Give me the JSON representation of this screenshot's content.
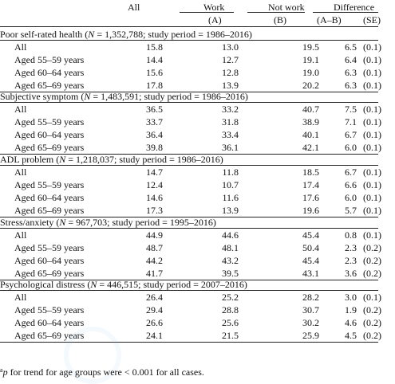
{
  "header": {
    "all": "All",
    "work": "Work",
    "not_work": "Not work",
    "difference": "Difference",
    "a": "(A)",
    "b": "(B)",
    "a_minus_b": "(A–B)",
    "se": "(SE)"
  },
  "sections": [
    {
      "title_prefix": "Poor self-rated health (",
      "n_label": "N",
      "title_suffix": " = 1,352,788; study period = 1986–2016)",
      "rows": [
        {
          "label": "All",
          "all": "15.8",
          "work": "13.0",
          "not_work": "19.5",
          "diff": "6.5",
          "se": "(0.1)"
        },
        {
          "label": "Aged 55–59 years",
          "all": "14.4",
          "work": "12.7",
          "not_work": "19.1",
          "diff": "6.4",
          "se": "(0.1)"
        },
        {
          "label": "Aged 60–64 years",
          "all": "15.6",
          "work": "12.8",
          "not_work": "19.0",
          "diff": "6.3",
          "se": "(0.1)"
        },
        {
          "label": "Aged 65–69 years",
          "all": "17.8",
          "work": "13.9",
          "not_work": "20.2",
          "diff": "6.3",
          "se": "(0.1)"
        }
      ]
    },
    {
      "title_prefix": "Subjective symptom (",
      "n_label": "N",
      "title_suffix": " = 1,483,591; study period = 1986–2016)",
      "rows": [
        {
          "label": "All",
          "all": "36.5",
          "work": "33.2",
          "not_work": "40.7",
          "diff": "7.5",
          "se": "(0.1)"
        },
        {
          "label": "Aged 55–59 years",
          "all": "33.7",
          "work": "31.8",
          "not_work": "38.9",
          "diff": "7.1",
          "se": "(0.1)"
        },
        {
          "label": "Aged 60–64 years",
          "all": "36.4",
          "work": "33.4",
          "not_work": "40.1",
          "diff": "6.7",
          "se": "(0.1)"
        },
        {
          "label": "Aged 65–69 years",
          "all": "39.8",
          "work": "36.1",
          "not_work": "42.1",
          "diff": "6.0",
          "se": "(0.1)"
        }
      ]
    },
    {
      "title_prefix": "ADL problem (",
      "n_label": "N",
      "title_suffix": " = 1,218,037; study period = 1986–2016)",
      "rows": [
        {
          "label": "All",
          "all": "14.7",
          "work": "11.8",
          "not_work": "18.5",
          "diff": "6.7",
          "se": "(0.1)"
        },
        {
          "label": "Aged 55–59 years",
          "all": "12.4",
          "work": "10.7",
          "not_work": "17.4",
          "diff": "6.6",
          "se": "(0.1)"
        },
        {
          "label": "Aged 60–64 years",
          "all": "14.6",
          "work": "11.6",
          "not_work": "17.6",
          "diff": "6.0",
          "se": "(0.1)"
        },
        {
          "label": "Aged 65–69 years",
          "all": "17.3",
          "work": "13.9",
          "not_work": "19.6",
          "diff": "5.7",
          "se": "(0.1)"
        }
      ]
    },
    {
      "title_prefix": "Stress/anxiety (",
      "n_label": "N",
      "title_suffix": " = 967,703; study period = 1995–2016)",
      "rows": [
        {
          "label": "All",
          "all": "44.9",
          "work": "44.6",
          "not_work": "45.4",
          "diff": "0.8",
          "se": "(0.1)"
        },
        {
          "label": "Aged 55–59 years",
          "all": "48.7",
          "work": "48.1",
          "not_work": "50.4",
          "diff": "2.3",
          "se": "(0.2)"
        },
        {
          "label": "Aged 60–64 years",
          "all": "44.2",
          "work": "43.2",
          "not_work": "45.4",
          "diff": "2.3",
          "se": "(0.2)"
        },
        {
          "label": "Aged 65–69 years",
          "all": "41.7",
          "work": "39.5",
          "not_work": "43.1",
          "diff": "3.6",
          "se": "(0.2)"
        }
      ]
    },
    {
      "title_prefix": "Psychological distress (",
      "n_label": "N",
      "title_suffix": " = 446,515; study period = 2007–2016)",
      "rows": [
        {
          "label": "All",
          "all": "26.4",
          "work": "25.2",
          "not_work": "28.2",
          "diff": "3.0",
          "se": "(0.1)"
        },
        {
          "label": "Aged 55–59 years",
          "all": "29.4",
          "work": "28.8",
          "not_work": "30.7",
          "diff": "1.9",
          "se": "(0.2)"
        },
        {
          "label": "Aged 60–64 years",
          "all": "26.6",
          "work": "25.6",
          "not_work": "30.2",
          "diff": "4.6",
          "se": "(0.2)"
        },
        {
          "label": "Aged 65–69 years",
          "all": "24.1",
          "work": "21.5",
          "not_work": "25.9",
          "diff": "4.5",
          "se": "(0.2)"
        }
      ]
    }
  ],
  "footnote": {
    "marker": "a",
    "p_symbol": "p",
    "text": " for trend for age groups were < 0.001 for all cases."
  }
}
